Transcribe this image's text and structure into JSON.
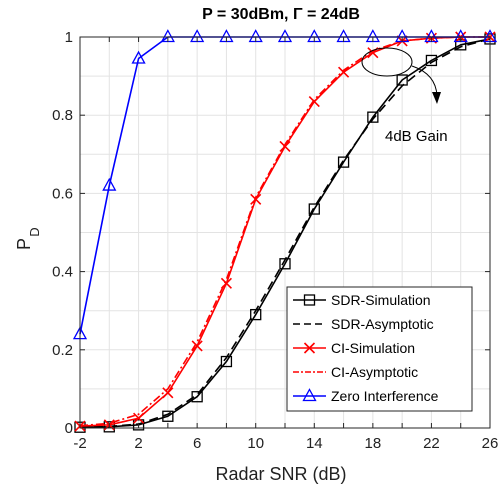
{
  "chart_data": {
    "type": "line",
    "title": "P = 30dBm, Γ = 24dB",
    "xlabel": "Radar SNR (dB)",
    "ylabel_main": "P",
    "ylabel_sub": "D",
    "xlim": [
      -2,
      26
    ],
    "ylim": [
      0,
      1
    ],
    "xticks": [
      "-2",
      "2",
      "6",
      "10",
      "14",
      "18",
      "22",
      "26"
    ],
    "yticks": [
      "0",
      "0.2",
      "0.4",
      "0.6",
      "0.8",
      "1"
    ],
    "grid": true,
    "legend_position": "bottom-right",
    "annotation": "4dB Gain",
    "series": [
      {
        "name": "SDR-Simulation",
        "color": "#000000",
        "line": "solid",
        "marker": "square",
        "x": [
          -2,
          0,
          2,
          4,
          6,
          8,
          10,
          12,
          14,
          16,
          18,
          20,
          22,
          24,
          26
        ],
        "y": [
          0.002,
          0.003,
          0.008,
          0.03,
          0.08,
          0.17,
          0.29,
          0.42,
          0.56,
          0.68,
          0.795,
          0.89,
          0.94,
          0.98,
          0.995
        ]
      },
      {
        "name": "SDR-Asymptotic",
        "color": "#000000",
        "line": "dashed",
        "marker": "none",
        "x": [
          -2,
          0,
          2,
          4,
          6,
          8,
          10,
          12,
          14,
          16,
          18,
          20,
          22,
          24,
          26
        ],
        "y": [
          0.002,
          0.004,
          0.01,
          0.035,
          0.085,
          0.18,
          0.3,
          0.43,
          0.565,
          0.685,
          0.79,
          0.875,
          0.935,
          0.975,
          0.995
        ]
      },
      {
        "name": "CI-Simulation",
        "color": "#ff0000",
        "line": "solid",
        "marker": "x",
        "x": [
          -2,
          0,
          2,
          4,
          6,
          8,
          10,
          12,
          14,
          16,
          18,
          20,
          22,
          24,
          26
        ],
        "y": [
          0.005,
          0.008,
          0.025,
          0.09,
          0.21,
          0.37,
          0.585,
          0.72,
          0.835,
          0.91,
          0.96,
          0.99,
          0.997,
          1.0,
          1.0
        ]
      },
      {
        "name": "CI-Asymptotic",
        "color": "#ff0000",
        "line": "dashdot",
        "marker": "none",
        "x": [
          -2,
          0,
          2,
          4,
          6,
          8,
          10,
          12,
          14,
          16,
          18,
          20,
          22,
          24,
          26
        ],
        "y": [
          0.006,
          0.012,
          0.035,
          0.1,
          0.22,
          0.38,
          0.59,
          0.725,
          0.84,
          0.915,
          0.965,
          0.99,
          0.997,
          1.0,
          1.0
        ]
      },
      {
        "name": "Zero Interference",
        "color": "#0000ff",
        "line": "solid",
        "marker": "triangle",
        "x": [
          -2,
          0,
          2,
          4,
          6,
          8,
          10,
          12,
          14,
          16,
          18,
          20,
          22,
          24,
          26
        ],
        "y": [
          0.24,
          0.62,
          0.945,
          1.0,
          1.0,
          1.0,
          1.0,
          1.0,
          1.0,
          1.0,
          1.0,
          1.0,
          1.0,
          1.0,
          1.0
        ]
      }
    ]
  }
}
